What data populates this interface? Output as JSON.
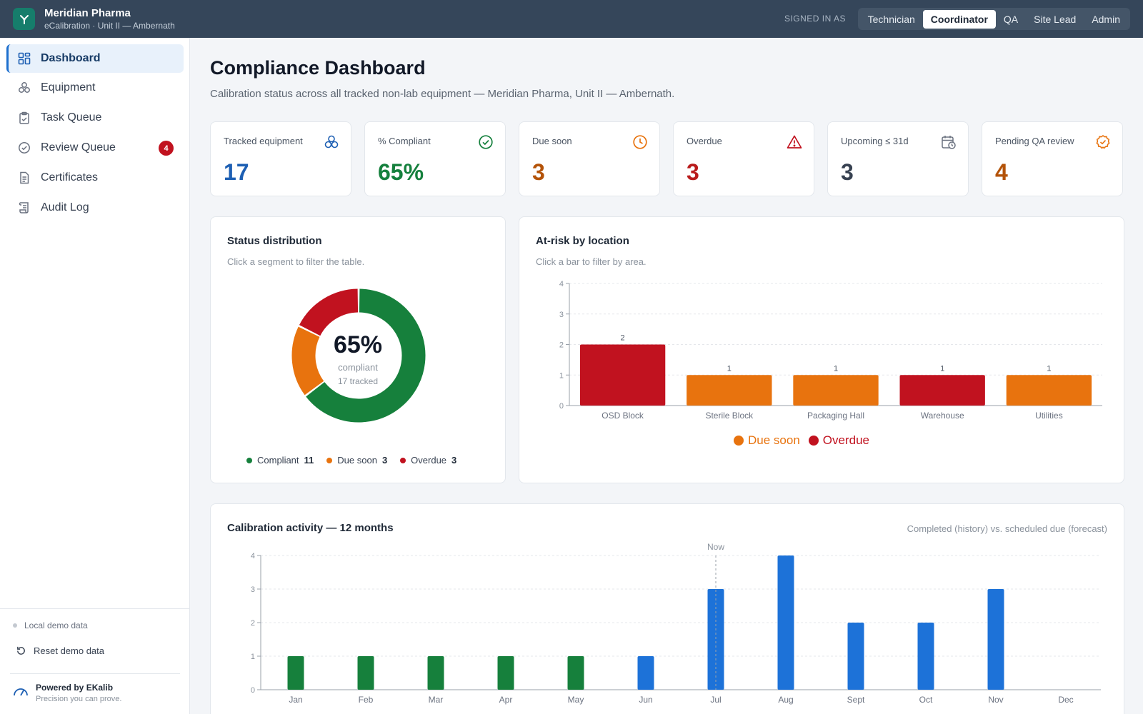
{
  "header": {
    "brand_name": "Meridian Pharma",
    "brand_sub": "eCalibration · Unit II — Ambernath",
    "signed_in_label": "SIGNED IN AS",
    "roles": [
      "Technician",
      "Coordinator",
      "QA",
      "Site Lead",
      "Admin"
    ],
    "active_role": "Coordinator"
  },
  "sidebar": {
    "items": [
      {
        "label": "Dashboard",
        "icon": "dashboard-icon",
        "active": true
      },
      {
        "label": "Equipment",
        "icon": "equipment-icon"
      },
      {
        "label": "Task Queue",
        "icon": "clipboard-icon"
      },
      {
        "label": "Review Queue",
        "icon": "check-circle-icon",
        "badge": "4"
      },
      {
        "label": "Certificates",
        "icon": "document-icon"
      },
      {
        "label": "Audit Log",
        "icon": "scroll-icon"
      }
    ],
    "local_demo": "Local demo data",
    "reset_label": "Reset demo data",
    "powered_title": "Powered by EKalib",
    "powered_sub": "Precision you can prove."
  },
  "page": {
    "title": "Compliance Dashboard",
    "subtitle": "Calibration status across all tracked non-lab equipment — Meridian Pharma, Unit II — Ambernath."
  },
  "kpis": [
    {
      "label": "Tracked equipment",
      "value": "17",
      "icon": "equipment-icon",
      "color": "#1d5fb3"
    },
    {
      "label": "% Compliant",
      "value": "65%",
      "icon": "check-circle-icon",
      "color": "#15803d"
    },
    {
      "label": "Due soon",
      "value": "3",
      "icon": "clock-icon",
      "color": "#b45309"
    },
    {
      "label": "Overdue",
      "value": "3",
      "icon": "warning-icon",
      "color": "#b91c1c"
    },
    {
      "label": "Upcoming ≤ 31d",
      "value": "3",
      "icon": "calendar-clock-icon",
      "color": "#374151"
    },
    {
      "label": "Pending QA review",
      "value": "4",
      "icon": "badge-check-icon",
      "color": "#b45309"
    }
  ],
  "status_card": {
    "title": "Status distribution",
    "subtitle": "Click a segment to filter the table.",
    "center_value": "65%",
    "center_label": "compliant",
    "center_sub": "17 tracked"
  },
  "location_card": {
    "title": "At-risk by location",
    "subtitle": "Click a bar to filter by area."
  },
  "activity_card": {
    "title": "Calibration activity — 12 months",
    "note": "Completed (history) vs. scheduled due (forecast)",
    "now_label": "Now"
  },
  "colors": {
    "compliant": "#16803c",
    "due_soon": "#e8730e",
    "overdue": "#c1121f",
    "history": "#16803c",
    "forecast": "#1d72d8"
  },
  "chart_data": [
    {
      "type": "pie",
      "variant": "donut",
      "labels": [
        "Compliant",
        "Due soon",
        "Overdue"
      ],
      "values": [
        11,
        3,
        3
      ],
      "colors": [
        "#16803c",
        "#e8730e",
        "#c1121f"
      ]
    },
    {
      "type": "bar",
      "categories": [
        "OSD Block",
        "Sterile Block",
        "Packaging Hall",
        "Warehouse",
        "Utilities"
      ],
      "values": [
        2,
        1,
        1,
        1,
        1
      ],
      "bar_status": [
        "Overdue",
        "Due soon",
        "Due soon",
        "Overdue",
        "Due soon"
      ],
      "legend": [
        "Due soon",
        "Overdue"
      ],
      "legend_colors": [
        "#e8730e",
        "#c1121f"
      ],
      "ylim": [
        0,
        4
      ],
      "yticks": [
        0,
        1,
        2,
        3,
        4
      ],
      "grid": true,
      "legend_position": "bottom"
    },
    {
      "type": "bar",
      "categories": [
        "Jan",
        "Feb",
        "Mar",
        "Apr",
        "May",
        "Jun",
        "Jul",
        "Aug",
        "Sept",
        "Oct",
        "Nov",
        "Dec"
      ],
      "values": [
        1,
        1,
        1,
        1,
        1,
        1,
        3,
        4,
        2,
        2,
        3,
        0
      ],
      "kind": [
        "completed",
        "completed",
        "completed",
        "completed",
        "completed",
        "forecast",
        "forecast",
        "forecast",
        "forecast",
        "forecast",
        "forecast",
        "forecast"
      ],
      "now_marker": "Jul",
      "ylim": [
        0,
        4
      ],
      "yticks": [
        0,
        1,
        2,
        3,
        4
      ],
      "grid": true
    }
  ]
}
